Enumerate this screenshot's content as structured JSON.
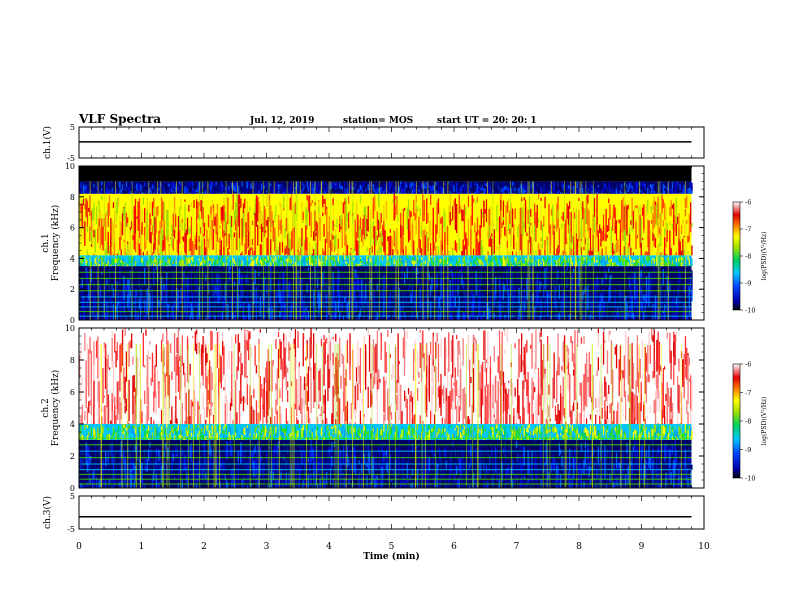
{
  "header": {
    "title": "VLF Spectra",
    "date": "Jul. 12, 2019",
    "station": "station= MOS",
    "start": "start UT = 20: 20: 1"
  },
  "chart_data": [
    {
      "type": "line",
      "ylabel": "ch.1(V)",
      "ylim": [
        -5,
        5
      ],
      "yticks": [
        "5",
        "-5"
      ],
      "xlim": [
        0,
        10
      ],
      "series": [
        {
          "x": [
            0,
            9.8
          ],
          "values": [
            0.2,
            0.2
          ]
        }
      ]
    },
    {
      "type": "heatmap",
      "ylabel": "ch.1",
      "ylabel2": "Frequency (kHz)",
      "ylim": [
        0,
        10
      ],
      "yticks": [
        "0",
        "2",
        "4",
        "6",
        "8",
        "10"
      ],
      "xlim": [
        0,
        10
      ],
      "data_xmax": 9.8,
      "colorbar": {
        "label": "log(PSD)(V²/Hz)",
        "ticks": [
          "-6",
          "-7",
          "-8",
          "-9",
          "-10"
        ],
        "range": [
          -10,
          -6
        ]
      },
      "bands_khz": [
        {
          "from": 9.0,
          "to": 10.0,
          "level": "none"
        },
        {
          "from": 8.2,
          "to": 9.0,
          "level": "low"
        },
        {
          "from": 4.2,
          "to": 8.2,
          "level": "high"
        },
        {
          "from": 3.5,
          "to": 4.2,
          "level": "mid"
        },
        {
          "from": 0.0,
          "to": 3.5,
          "level": "low"
        }
      ]
    },
    {
      "type": "heatmap",
      "ylabel": "ch.2",
      "ylabel2": "Frequency (kHz)",
      "ylim": [
        0,
        10
      ],
      "yticks": [
        "0",
        "2",
        "4",
        "6",
        "8",
        "10"
      ],
      "xlim": [
        0,
        10
      ],
      "data_xmax": 9.8,
      "colorbar": {
        "label": "log(PSD)(V²/Hz)",
        "ticks": [
          "-6",
          "-7",
          "-8",
          "-9",
          "-10"
        ],
        "range": [
          -10,
          -6
        ]
      },
      "bands_khz": [
        {
          "from": 4.0,
          "to": 10.0,
          "level": "max"
        },
        {
          "from": 3.0,
          "to": 4.0,
          "level": "mid"
        },
        {
          "from": 0.0,
          "to": 3.0,
          "level": "low"
        }
      ]
    },
    {
      "type": "line",
      "ylabel": "ch.3(V)",
      "ylim": [
        -5,
        5
      ],
      "yticks": [
        "5",
        "-5"
      ],
      "xlim": [
        0,
        10
      ],
      "xlabel": "Time (min)",
      "xticks": [
        "0",
        "1",
        "2",
        "3",
        "4",
        "5",
        "6",
        "7",
        "8",
        "9",
        "10"
      ],
      "series": [
        {
          "x": [
            0,
            9.8
          ],
          "values": [
            -1.3,
            -1.3
          ]
        }
      ]
    }
  ]
}
